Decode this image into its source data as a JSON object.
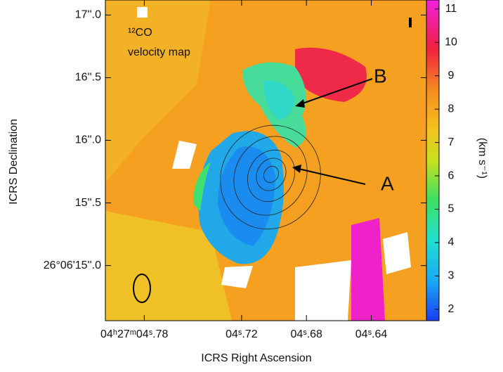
{
  "chart_data": {
    "type": "image",
    "xlabel": "ICRS Right Ascension",
    "ylabel": "ICRS Declination",
    "xlim": [
      4.804,
      4.606
    ],
    "xticks": [
      {
        "value": 4.78,
        "label": "04ʰ27ᵐ04ˢ.78"
      },
      {
        "value": 4.72,
        "label": "04ˢ.72"
      },
      {
        "value": 4.68,
        "label": "04ˢ.68"
      },
      {
        "value": 4.64,
        "label": "04ˢ.64"
      }
    ],
    "ylim": [
      14.56,
      17.12
    ],
    "yticks": [
      {
        "value": 17,
        "label": "17''.0"
      },
      {
        "value": 16.5,
        "label": "16''.5"
      },
      {
        "value": 16,
        "label": "16''.0"
      },
      {
        "value": 15.5,
        "label": "15''.5"
      },
      {
        "value": 15,
        "label": "26°06'15''.0"
      }
    ],
    "colorbar": {
      "label": "(km s⁻¹)",
      "lim": [
        1.66,
        11.27
      ],
      "ticks": [
        2,
        3,
        4,
        5,
        6,
        7,
        8,
        9,
        10,
        11
      ]
    },
    "annotations": [
      "¹²CO",
      "velocity map",
      "A",
      "B"
    ]
  }
}
